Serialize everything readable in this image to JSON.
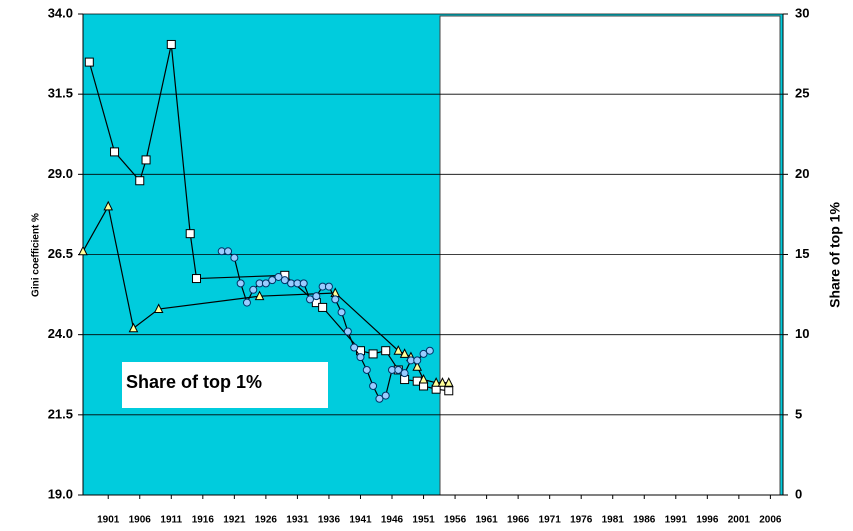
{
  "chart_data": {
    "type": "line",
    "ylabel": "Gini coefficient %",
    "y2label": "Share of top 1%",
    "annotation": "Share of top 1%",
    "xlim": [
      1897,
      2008
    ],
    "xticks": [
      1901,
      1906,
      1911,
      1916,
      1921,
      1926,
      1931,
      1936,
      1941,
      1946,
      1951,
      1956,
      1961,
      1966,
      1971,
      1976,
      1981,
      1986,
      1991,
      1996,
      2001,
      2006
    ],
    "ylim": [
      19,
      34
    ],
    "yticks": [
      {
        "value": 19,
        "label": "19.0"
      },
      {
        "value": 21.5,
        "label": "21.5"
      },
      {
        "value": 24,
        "label": "24.0"
      },
      {
        "value": 26.5,
        "label": "26.5"
      },
      {
        "value": 29,
        "label": "29.0"
      },
      {
        "value": 31.5,
        "label": "31.5"
      },
      {
        "value": 34,
        "label": "34.0"
      }
    ],
    "y2lim": [
      0,
      30
    ],
    "y2ticks": [
      0,
      5,
      10,
      15,
      20,
      25,
      30
    ],
    "grid": true,
    "series": [
      {
        "marker": "square",
        "color": "#ffffff",
        "axis": "y2",
        "x": [
          1898,
          1902,
          1906,
          1907,
          1911,
          1914,
          1915,
          1929,
          1934,
          1935,
          1941,
          1943,
          1945,
          1947,
          1948,
          1950,
          1951,
          1953,
          1955
        ],
        "values": [
          27.0,
          21.4,
          19.6,
          20.9,
          28.1,
          16.3,
          13.5,
          13.7,
          12.0,
          11.7,
          9.0,
          8.8,
          9.0,
          7.8,
          7.2,
          7.1,
          6.8,
          6.6,
          6.5
        ]
      },
      {
        "marker": "triangle",
        "color": "#ffff99",
        "x": [
          1897,
          1901,
          1905,
          1909,
          1925,
          1937,
          1947,
          1948,
          1949,
          1950,
          1951,
          1953,
          1954,
          1955
        ],
        "values": [
          26.6,
          28.0,
          24.2,
          24.8,
          25.2,
          25.3,
          23.5,
          23.4,
          23.3,
          23.0,
          22.6,
          22.5,
          22.5,
          22.5
        ]
      },
      {
        "marker": "circle",
        "color": "#99ccff",
        "x": [
          1919,
          1920,
          1921,
          1922,
          1923,
          1924,
          1925,
          1926,
          1927,
          1928,
          1929,
          1930,
          1931,
          1932,
          1933,
          1934,
          1935,
          1936,
          1937,
          1938,
          1939,
          1940,
          1941,
          1942,
          1943,
          1944,
          1945,
          1946,
          1947,
          1948,
          1949,
          1950,
          1951,
          1952
        ],
        "values": [
          26.6,
          26.6,
          26.4,
          25.6,
          25.0,
          25.4,
          25.6,
          25.6,
          25.7,
          25.8,
          25.7,
          25.6,
          25.6,
          25.6,
          25.1,
          25.2,
          25.5,
          25.5,
          25.1,
          24.7,
          24.1,
          23.6,
          23.3,
          22.9,
          22.4,
          22.0,
          22.1,
          22.9,
          22.9,
          22.8,
          23.2,
          23.2,
          23.4,
          23.5
        ]
      }
    ]
  }
}
